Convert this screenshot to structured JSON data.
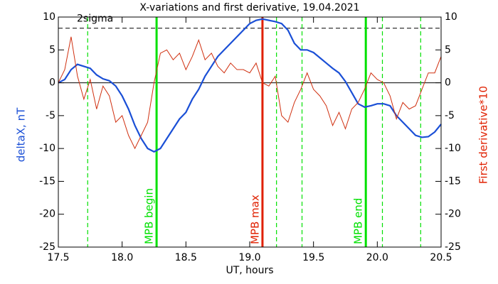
{
  "chart_data": {
    "type": "line",
    "title": "X-variations and first derivative, 19.04.2021",
    "x_label": "UT, hours",
    "y_label": "deltaX, nT",
    "y2_label": "First derivative*10",
    "xlim": [
      17.5,
      20.5
    ],
    "xticks": [
      17.5,
      {
        "value": 18,
        "label": "18.0"
      },
      18.5,
      {
        "value": 19,
        "label": "19.0"
      },
      19.5,
      {
        "value": 20,
        "label": "20.0"
      },
      20.5
    ],
    "ylim": [
      -25,
      10
    ],
    "yticks": [
      -25,
      -20,
      -15,
      -10,
      -5,
      0,
      5,
      10
    ],
    "y2lim": [
      -25,
      10
    ],
    "y2ticks": [
      -25,
      -20,
      -15,
      -10,
      -5,
      0,
      5,
      10
    ],
    "x": [
      17.5,
      17.55,
      17.6,
      17.65,
      17.7,
      17.75,
      17.8,
      17.85,
      17.9,
      17.95,
      18,
      18.05,
      18.1,
      18.15,
      18.2,
      18.25,
      18.3,
      18.35,
      18.4,
      18.45,
      18.5,
      18.55,
      18.6,
      18.65,
      18.7,
      18.75,
      18.8,
      18.85,
      18.9,
      18.95,
      19,
      19.05,
      19.1,
      19.15,
      19.2,
      19.25,
      19.3,
      19.35,
      19.4,
      19.45,
      19.5,
      19.55,
      19.6,
      19.65,
      19.7,
      19.75,
      19.8,
      19.85,
      19.9,
      19.95,
      20,
      20.05,
      20.1,
      20.15,
      20.2,
      20.25,
      20.3,
      20.35,
      20.4,
      20.45,
      20.5
    ],
    "series": [
      {
        "color": "#1a4fd6",
        "axis": "y",
        "values": [
          0,
          0.5,
          2,
          2.8,
          2.5,
          2.2,
          1.2,
          0.6,
          0.3,
          -0.5,
          -2,
          -4,
          -6.5,
          -8.5,
          -10,
          -10.5,
          -10,
          -8.5,
          -7,
          -5.5,
          -4.5,
          -2.5,
          -1,
          1,
          2.5,
          4,
          5,
          6,
          7,
          8,
          9,
          9.5,
          9.7,
          9.5,
          9.3,
          9,
          8,
          6,
          5,
          5,
          4.6,
          3.8,
          3,
          2.2,
          1.5,
          0.2,
          -1.5,
          -3.2,
          -3.7,
          -3.5,
          -3.2,
          -3.2,
          -3.5,
          -5,
          -6,
          -7,
          -8,
          -8.3,
          -8.2,
          -7.5,
          -6.3
        ]
      },
      {
        "color": "#d03010",
        "axis": "y2",
        "values": [
          0,
          2,
          7,
          1,
          -2.5,
          0.5,
          -4,
          -0.5,
          -2,
          -6,
          -5,
          -8,
          -10,
          -8,
          -6,
          0,
          4.5,
          5,
          3.5,
          4.5,
          2,
          4,
          6.5,
          3.5,
          4.5,
          2.5,
          1.5,
          3,
          2,
          2,
          1.5,
          3,
          0,
          -0.5,
          1,
          -5,
          -6,
          -3,
          -1,
          1.5,
          -1,
          -2,
          -3.5,
          -6.5,
          -4.5,
          -7,
          -4,
          -3,
          -1,
          1.5,
          0.5,
          0,
          -2,
          -5.5,
          -3,
          -4,
          -3.5,
          -1,
          1.5,
          1.5,
          4
        ]
      }
    ],
    "hlines": [
      {
        "y": 0,
        "color": "#000000",
        "style": "solid"
      },
      {
        "y": 8.3,
        "color": "#000000",
        "style": "dashed",
        "label": "2sigma"
      }
    ],
    "vlines": [
      {
        "x": 17.73,
        "color": "#00e000",
        "style": "dashed"
      },
      {
        "x": 18.27,
        "color": "#00e000",
        "style": "solid",
        "label": "MPB begin"
      },
      {
        "x": 19.1,
        "color": "#e02000",
        "style": "solid",
        "label": "MPB max"
      },
      {
        "x": 19.21,
        "color": "#00e000",
        "style": "dashed"
      },
      {
        "x": 19.41,
        "color": "#00e000",
        "style": "dashed"
      },
      {
        "x": 19.91,
        "color": "#00e000",
        "style": "solid",
        "label": "MPB end"
      },
      {
        "x": 20.04,
        "color": "#00e000",
        "style": "dashed"
      },
      {
        "x": 20.34,
        "color": "#00e000",
        "style": "dashed"
      }
    ]
  }
}
